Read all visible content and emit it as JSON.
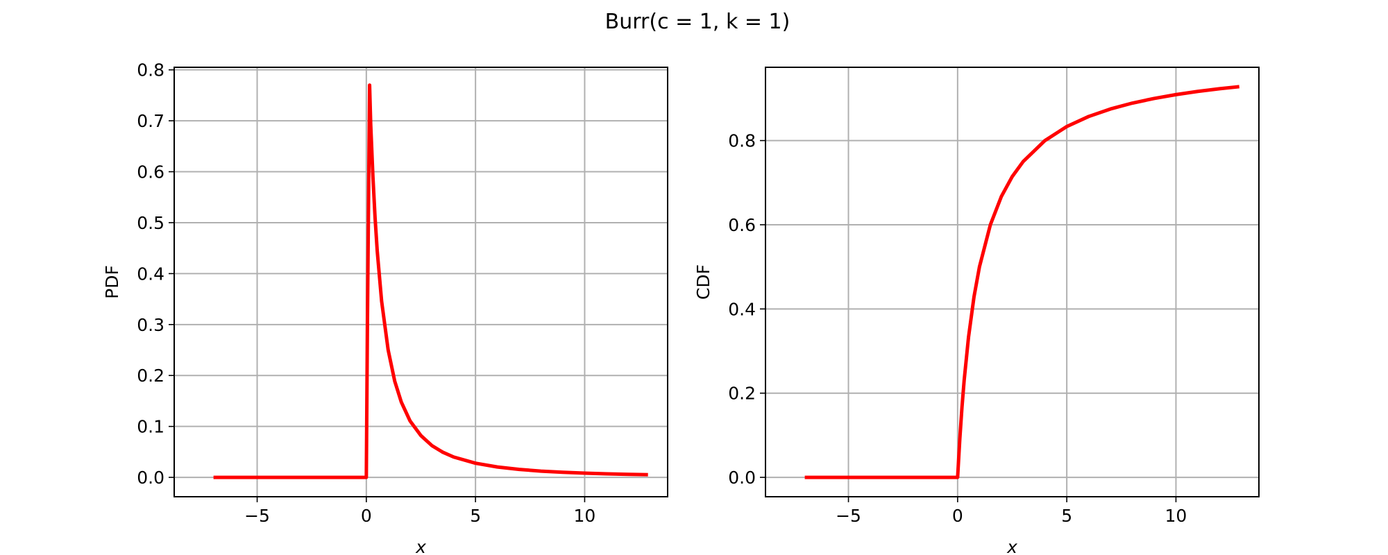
{
  "figure_title": "Burr(c = 1, k = 1)",
  "colors": {
    "curve": "#ff0000",
    "grid": "#b0b0b0",
    "axes": "#000000"
  },
  "chart_data": [
    {
      "type": "line",
      "id": "pdf",
      "title": "",
      "xlabel": "x",
      "ylabel": "PDF",
      "xlim": [
        -8.8,
        13.8
      ],
      "ylim": [
        -0.038,
        0.805
      ],
      "xticks": [
        -5,
        0,
        5,
        10
      ],
      "xtick_labels": [
        "−5",
        "0",
        "5",
        "10"
      ],
      "yticks": [
        0.0,
        0.1,
        0.2,
        0.3,
        0.4,
        0.5,
        0.6,
        0.7,
        0.8
      ],
      "ytick_labels": [
        "0.0",
        "0.1",
        "0.2",
        "0.3",
        "0.4",
        "0.5",
        "0.6",
        "0.7",
        "0.8"
      ],
      "grid": true,
      "series": [
        {
          "color": "#ff0000",
          "x": [
            -7.0,
            -4.0,
            -1.0,
            -0.02,
            0.0,
            0.05,
            0.15,
            0.2,
            0.3,
            0.4,
            0.5,
            0.7,
            1.0,
            1.3,
            1.6,
            2.0,
            2.5,
            3.0,
            3.5,
            4.0,
            5.0,
            6.0,
            7.0,
            8.0,
            9.0,
            10.0,
            11.0,
            12.0,
            12.9
          ],
          "y": [
            0.0,
            0.0,
            0.0,
            0.0,
            0.0,
            0.3,
            0.77,
            0.694,
            0.592,
            0.51,
            0.444,
            0.346,
            0.25,
            0.189,
            0.148,
            0.111,
            0.082,
            0.0625,
            0.0494,
            0.04,
            0.0278,
            0.0204,
            0.0156,
            0.0123,
            0.01,
            0.0083,
            0.0069,
            0.0059,
            0.0052
          ]
        }
      ]
    },
    {
      "type": "line",
      "id": "cdf",
      "title": "",
      "xlabel": "x",
      "ylabel": "CDF",
      "xlim": [
        -8.8,
        13.8
      ],
      "ylim": [
        -0.046,
        0.974
      ],
      "xticks": [
        -5,
        0,
        5,
        10
      ],
      "xtick_labels": [
        "−5",
        "0",
        "5",
        "10"
      ],
      "yticks": [
        0.0,
        0.2,
        0.4,
        0.6,
        0.8
      ],
      "ytick_labels": [
        "0.0",
        "0.2",
        "0.4",
        "0.6",
        "0.8"
      ],
      "grid": true,
      "series": [
        {
          "color": "#ff0000",
          "x": [
            -7.0,
            -4.0,
            -1.0,
            0.0,
            0.1,
            0.2,
            0.3,
            0.5,
            0.75,
            1.0,
            1.5,
            2.0,
            2.5,
            3.0,
            4.0,
            5.0,
            6.0,
            7.0,
            8.0,
            9.0,
            10.0,
            11.0,
            12.0,
            12.9
          ],
          "y": [
            0.0,
            0.0,
            0.0,
            0.0,
            0.0909,
            0.1667,
            0.2308,
            0.3333,
            0.4286,
            0.5,
            0.6,
            0.6667,
            0.7143,
            0.75,
            0.8,
            0.8333,
            0.8571,
            0.875,
            0.8889,
            0.9,
            0.9091,
            0.9167,
            0.9231,
            0.928
          ]
        }
      ]
    }
  ]
}
